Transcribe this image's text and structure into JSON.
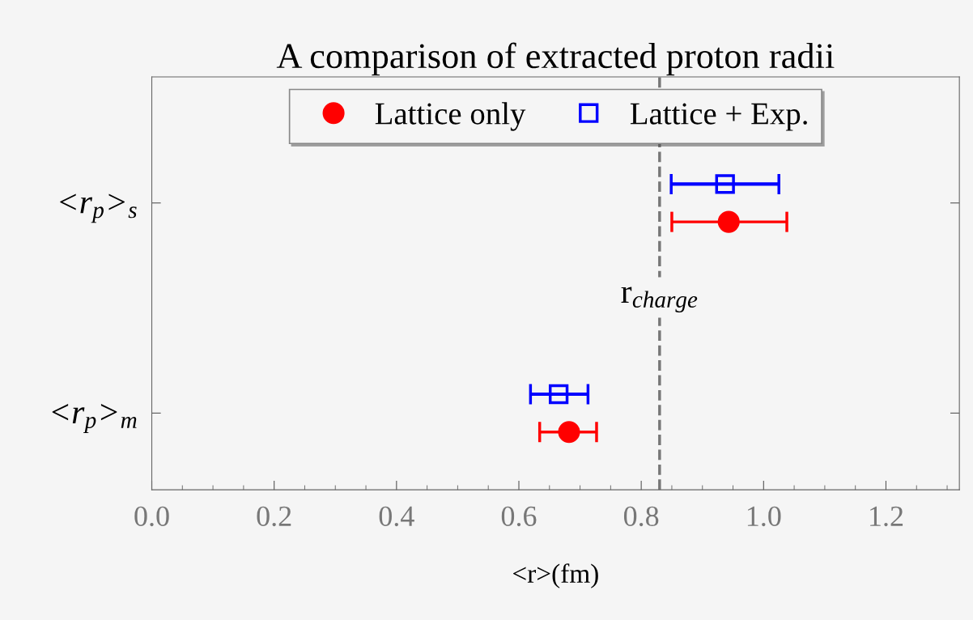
{
  "chart_data": {
    "type": "scatter",
    "orientation": "horizontal",
    "title": "A comparison of extracted proton radii",
    "xlabel": "<r>(fm)",
    "categories": [
      "<r$_{p}$>$_{s}$",
      "<r$_{p}$>$_{m}$"
    ],
    "series": [
      {
        "name": "Lattice only",
        "color": "#ff0000",
        "marker": "circle",
        "values": [
          0.943,
          0.682
        ],
        "errors": [
          [
            0.85,
            1.038
          ],
          [
            0.634,
            0.727
          ]
        ]
      },
      {
        "name": "Lattice + Exp.",
        "color": "#0000ff",
        "marker": "square",
        "values": [
          0.937,
          0.665
        ],
        "errors": [
          [
            0.849,
            1.025
          ],
          [
            0.619,
            0.713
          ]
        ]
      }
    ],
    "xlim": [
      0,
      1.32
    ],
    "xticks": [
      {
        "value": 0,
        "label": "0.0"
      },
      0.2,
      0.4,
      0.6,
      0.8,
      {
        "value": 1.0,
        "label": "1.0"
      },
      1.2
    ],
    "ref_lines": [
      {
        "axis": "x",
        "value": 0.83,
        "label": "r$_{charge}$",
        "color": "#777777",
        "line_style": "dashed"
      }
    ],
    "legend": "top",
    "grid": false
  }
}
